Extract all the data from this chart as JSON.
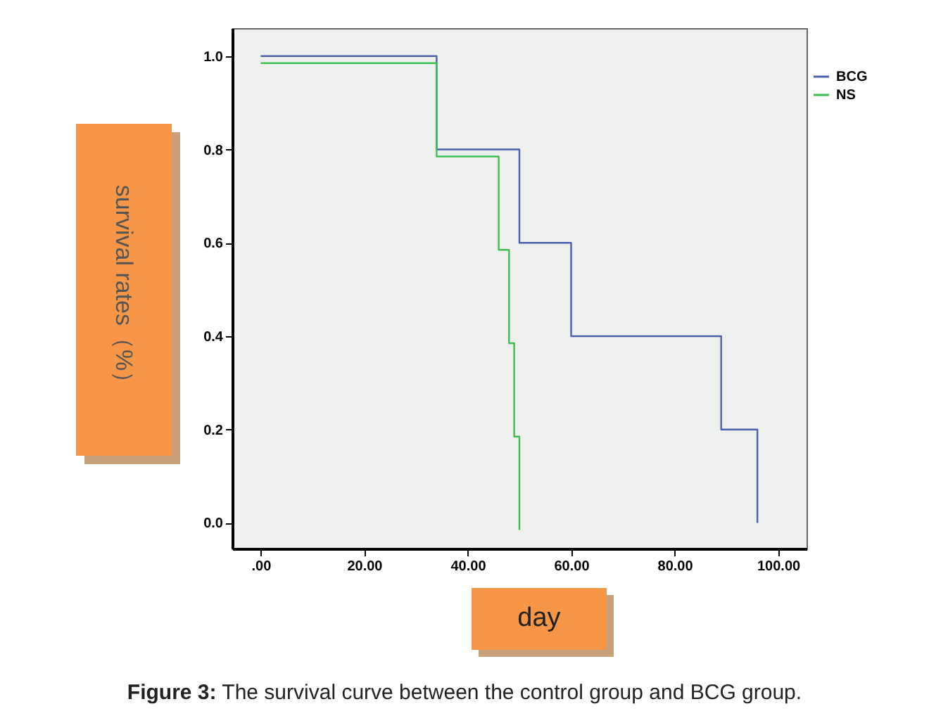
{
  "chart_data": {
    "type": "step",
    "xlabel": "day",
    "ylabel": "survival rates（%）",
    "xlim": [
      -5.5,
      105.5
    ],
    "ylim": [
      -0.055,
      1.06
    ],
    "xticks": [
      {
        "value": 0,
        "label": ".00"
      },
      {
        "value": 20,
        "label": "20.00"
      },
      {
        "value": 40,
        "label": "40.00"
      },
      {
        "value": 60,
        "label": "60.00"
      },
      {
        "value": 80,
        "label": "80.00"
      },
      {
        "value": 100,
        "label": "100.00"
      }
    ],
    "yticks": [
      {
        "value": 0,
        "label": "0.0"
      },
      {
        "value": 0.2,
        "label": "0.2"
      },
      {
        "value": 0.4,
        "label": "0.4"
      },
      {
        "value": 0.6,
        "label": "0.6"
      },
      {
        "value": 0.8,
        "label": "0.8"
      },
      {
        "value": 1,
        "label": "1.0"
      }
    ],
    "series": [
      {
        "name": "BCG",
        "color": "#4a5fb0",
        "x": [
          0,
          34,
          50,
          60,
          89,
          96
        ],
        "values": [
          1,
          0.8,
          0.6,
          0.4,
          0.2,
          0
        ]
      },
      {
        "name": "NS",
        "color": "#3dbf4f",
        "x": [
          0,
          34,
          46,
          48,
          49,
          50
        ],
        "values": [
          0.985,
          0.785,
          0.585,
          0.385,
          0.185,
          -0.015
        ]
      }
    ],
    "legend": "top right",
    "grid": false,
    "line_style": "solid",
    "marker": "none",
    "annotations": [
      "Figure 3:  The survival curve between the control group and BCG group."
    ]
  }
}
